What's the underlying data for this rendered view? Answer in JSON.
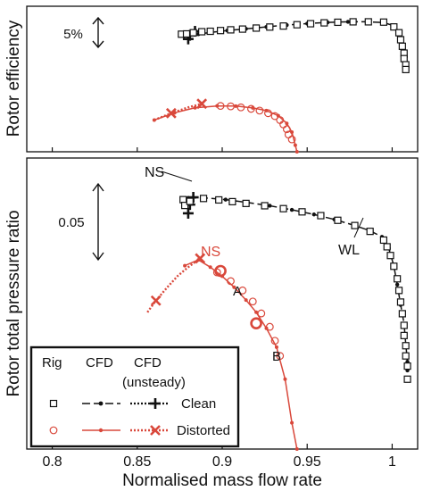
{
  "colors": {
    "clean": "#111111",
    "distorted": "#d9483b",
    "axis": "#111111"
  },
  "chart_data": {
    "type": "line",
    "xlabel": "Normalised mass flow rate",
    "xlim": [
      0.785,
      1.015
    ],
    "xticks": [
      0.8,
      0.85,
      0.9,
      0.95,
      1
    ],
    "xtick_labels": [
      "0.8",
      "0.85",
      "0.9",
      "0.95",
      "1"
    ],
    "panels": [
      {
        "ylabel": "Rotor efficiency",
        "ylim": [
          0,
          1
        ],
        "scale_annotation": "5%",
        "clean": {
          "rig": [
            [
              0.876,
              0.808
            ],
            [
              0.879,
              0.81
            ],
            [
              0.883,
              0.818
            ],
            [
              0.888,
              0.825
            ],
            [
              0.893,
              0.828
            ],
            [
              0.899,
              0.833
            ],
            [
              0.905,
              0.838
            ],
            [
              0.912,
              0.843
            ],
            [
              0.92,
              0.85
            ],
            [
              0.928,
              0.857
            ],
            [
              0.936,
              0.864
            ],
            [
              0.944,
              0.873
            ],
            [
              0.952,
              0.88
            ],
            [
              0.96,
              0.886
            ],
            [
              0.968,
              0.89
            ],
            [
              0.977,
              0.893
            ],
            [
              0.986,
              0.893
            ],
            [
              0.995,
              0.891
            ],
            [
              1.001,
              0.858
            ],
            [
              1.004,
              0.818
            ],
            [
              1.005,
              0.77
            ],
            [
              1.006,
              0.725
            ],
            [
              1.007,
              0.678
            ],
            [
              1.007,
              0.64
            ],
            [
              1.008,
              0.598
            ],
            [
              1.008,
              0.565
            ]
          ],
          "cfd": [
            [
              0.88,
              0.793
            ],
            [
              0.886,
              0.808
            ],
            [
              0.893,
              0.82
            ],
            [
              0.903,
              0.833
            ],
            [
              0.914,
              0.845
            ],
            [
              0.926,
              0.858
            ],
            [
              0.938,
              0.871
            ],
            [
              0.95,
              0.881
            ],
            [
              0.962,
              0.889
            ],
            [
              0.974,
              0.893
            ],
            [
              0.985,
              0.893
            ],
            [
              0.995,
              0.888
            ],
            [
              1.001,
              0.866
            ],
            [
              1.004,
              0.81
            ],
            [
              1.006,
              0.75
            ],
            [
              1.007,
              0.7
            ],
            [
              1.008,
              0.65
            ],
            [
              1.008,
              0.6
            ],
            [
              1.009,
              0.56
            ]
          ],
          "cfd_unsteady": [
            [
              0.88,
              0.775
            ],
            [
              0.881,
              0.8
            ],
            [
              0.884,
              0.828
            ]
          ]
        },
        "distorted": {
          "rig": [
            [
              0.899,
              0.315
            ],
            [
              0.905,
              0.312
            ],
            [
              0.911,
              0.305
            ],
            [
              0.917,
              0.295
            ],
            [
              0.922,
              0.283
            ],
            [
              0.927,
              0.265
            ],
            [
              0.931,
              0.245
            ],
            [
              0.934,
              0.218
            ],
            [
              0.936,
              0.188
            ],
            [
              0.938,
              0.155
            ],
            [
              0.939,
              0.118
            ],
            [
              0.941,
              0.085
            ]
          ],
          "cfd": [
            [
              0.86,
              0.218
            ],
            [
              0.872,
              0.268
            ],
            [
              0.884,
              0.302
            ],
            [
              0.897,
              0.315
            ],
            [
              0.908,
              0.314
            ],
            [
              0.918,
              0.301
            ],
            [
              0.926,
              0.283
            ],
            [
              0.933,
              0.248
            ],
            [
              0.938,
              0.195
            ],
            [
              0.941,
              0.135
            ],
            [
              0.943,
              0.045
            ],
            [
              0.944,
              0.0
            ]
          ],
          "cfd_unsteady": [
            [
              0.86,
              0.218
            ],
            [
              0.87,
              0.265
            ],
            [
              0.88,
              0.305
            ],
            [
              0.888,
              0.33
            ]
          ]
        }
      },
      {
        "ylabel": "Rotor total pressure ratio",
        "ylim": [
          0,
          1
        ],
        "scale_annotation": "0.05",
        "annotations": [
          "NS",
          "WL",
          "NS",
          "A",
          "B"
        ],
        "clean": {
          "rig": [
            [
              0.877,
              0.857
            ],
            [
              0.878,
              0.837
            ],
            [
              0.881,
              0.851
            ],
            [
              0.889,
              0.861
            ],
            [
              0.898,
              0.856
            ],
            [
              0.906,
              0.85
            ],
            [
              0.914,
              0.844
            ],
            [
              0.925,
              0.836
            ],
            [
              0.936,
              0.826
            ],
            [
              0.947,
              0.815
            ],
            [
              0.958,
              0.802
            ],
            [
              0.968,
              0.786
            ],
            [
              0.978,
              0.768
            ],
            [
              0.987,
              0.748
            ],
            [
              0.995,
              0.718
            ],
            [
              0.997,
              0.695
            ],
            [
              0.999,
              0.665
            ],
            [
              1.001,
              0.628
            ],
            [
              1.003,
              0.585
            ],
            [
              1.004,
              0.545
            ],
            [
              1.005,
              0.505
            ],
            [
              1.006,
              0.465
            ],
            [
              1.007,
              0.425
            ],
            [
              1.007,
              0.39
            ],
            [
              1.008,
              0.355
            ],
            [
              1.008,
              0.32
            ],
            [
              1.009,
              0.285
            ],
            [
              1.009,
              0.24
            ]
          ],
          "cfd": [
            [
              0.88,
              0.863
            ],
            [
              0.89,
              0.863
            ],
            [
              0.902,
              0.857
            ],
            [
              0.915,
              0.847
            ],
            [
              0.928,
              0.836
            ],
            [
              0.941,
              0.822
            ],
            [
              0.954,
              0.806
            ],
            [
              0.966,
              0.789
            ],
            [
              0.977,
              0.77
            ],
            [
              0.987,
              0.75
            ],
            [
              0.994,
              0.729
            ],
            [
              0.998,
              0.69
            ],
            [
              1.001,
              0.63
            ],
            [
              1.003,
              0.565
            ],
            [
              1.005,
              0.495
            ],
            [
              1.007,
              0.43
            ],
            [
              1.008,
              0.36
            ],
            [
              1.009,
              0.3
            ],
            [
              1.009,
              0.27
            ]
          ],
          "cfd_unsteady": [
            [
              0.88,
              0.81
            ],
            [
              0.881,
              0.84
            ],
            [
              0.883,
              0.865
            ]
          ]
        },
        "distorted": {
          "rig": [
            [
              0.897,
              0.607
            ],
            [
              0.905,
              0.577
            ],
            [
              0.912,
              0.545
            ],
            [
              0.918,
              0.507
            ],
            [
              0.923,
              0.466
            ],
            [
              0.928,
              0.42
            ],
            [
              0.931,
              0.372
            ],
            [
              0.934,
              0.32
            ]
          ],
          "cfd": [
            [
              0.878,
              0.63
            ],
            [
              0.886,
              0.65
            ],
            [
              0.893,
              0.625
            ],
            [
              0.9,
              0.594
            ],
            [
              0.907,
              0.556
            ],
            [
              0.914,
              0.512
            ],
            [
              0.92,
              0.47
            ],
            [
              0.926,
              0.415
            ],
            [
              0.932,
              0.35
            ],
            [
              0.937,
              0.24
            ],
            [
              0.941,
              0.09
            ],
            [
              0.944,
              0.0
            ]
          ],
          "cfd_unsteady": [
            [
              0.856,
              0.47
            ],
            [
              0.861,
              0.51
            ],
            [
              0.868,
              0.558
            ],
            [
              0.874,
              0.596
            ],
            [
              0.88,
              0.625
            ],
            [
              0.887,
              0.655
            ]
          ],
          "operating_points": [
            [
              0.899,
              0.612
            ],
            [
              0.92,
              0.432
            ]
          ]
        }
      }
    ],
    "legend": {
      "placement": "bottom-left",
      "column_headers": [
        "Rig",
        "CFD",
        "CFD",
        "(unsteady)"
      ],
      "rows": [
        "Clean",
        "Distorted"
      ]
    }
  }
}
